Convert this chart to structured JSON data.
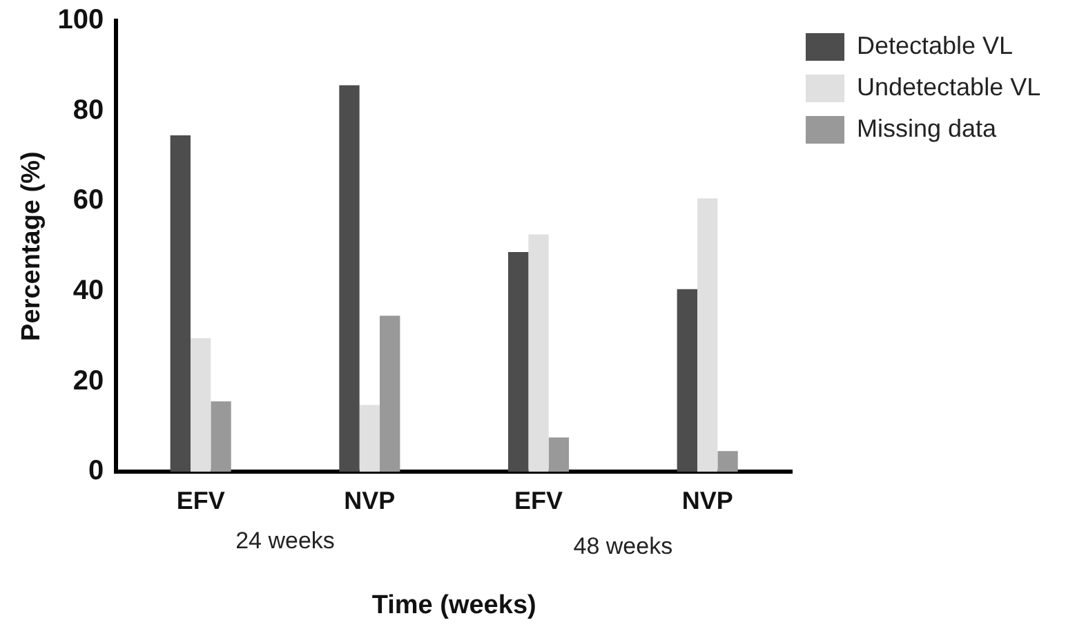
{
  "chart_data": {
    "type": "bar",
    "xlabel": "Time (weeks)",
    "ylabel": "Percentage (%)",
    "categories": [
      "EFV",
      "NVP",
      "EFV",
      "NVP"
    ],
    "series": [
      {
        "name": "Detectable VL",
        "color": "#4d4d4d",
        "values": [
          74.6,
          85.7,
          48.7,
          40.5
        ]
      },
      {
        "name": "Undetectable VL",
        "color": "#e0e0e0",
        "values": [
          29.6,
          14.8,
          52.6,
          60.6
        ]
      },
      {
        "name": "Missing data",
        "color": "#999999",
        "values": [
          15.6,
          34.6,
          7.6,
          4.6
        ]
      }
    ],
    "ylim": [
      0,
      100
    ],
    "yticks": [
      0,
      20,
      40,
      60,
      80,
      100
    ],
    "grid": false,
    "legend": "top right",
    "annotations": [
      "24 weeks",
      "48 weeks"
    ]
  }
}
